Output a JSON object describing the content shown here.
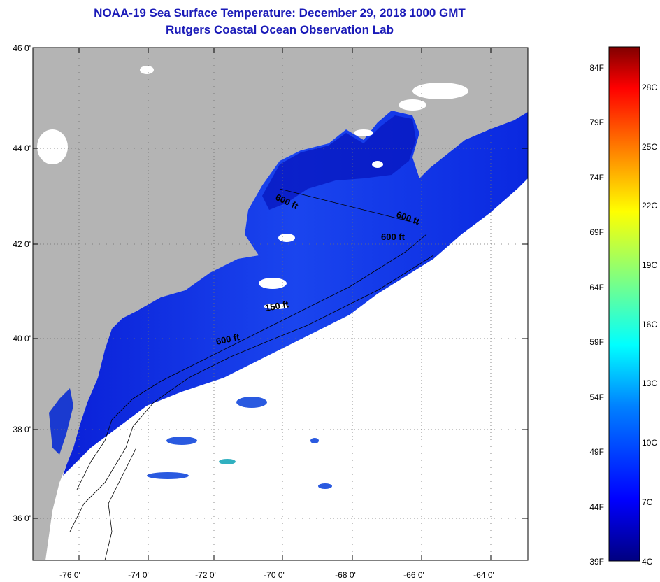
{
  "title": "NOAA-19 Sea Surface Temperature:  December 29, 2018 1000 GMT",
  "subtitle": "Rutgers Coastal Ocean Observation Lab",
  "lat_labels": [
    "46 0'",
    "44 0'",
    "42 0'",
    "40 0'",
    "38 0'",
    "36 0'"
  ],
  "lon_labels": [
    "-76 0'",
    "-74 0'",
    "-72 0'",
    "-70 0'",
    "-68 0'",
    "-66 0'",
    "-64 0'"
  ],
  "isobath_labels": [
    "600 ft",
    "600 ft",
    "600 ft",
    "150 ft",
    "600 ft"
  ],
  "colorbar": {
    "f_labels": [
      "84F",
      "79F",
      "74F",
      "69F",
      "64F",
      "59F",
      "54F",
      "49F",
      "44F",
      "39F"
    ],
    "c_labels": [
      "28C",
      "25C",
      "22C",
      "19C",
      "16C",
      "13C",
      "10C",
      "7C",
      "4C"
    ]
  },
  "colors": {
    "land": "#b4b4b4",
    "no_data": "#ffffff",
    "water_cold": "#0a1ee0",
    "water_mid": "#1e5af0",
    "title": "#1a1ab8"
  }
}
